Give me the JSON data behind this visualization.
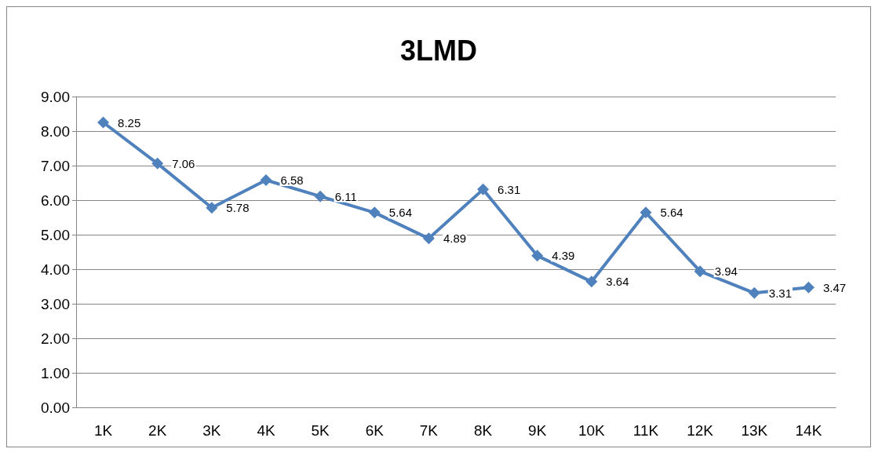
{
  "chart_data": {
    "type": "line",
    "title": "3LMD",
    "categories": [
      "1K",
      "2K",
      "3K",
      "4K",
      "5K",
      "6K",
      "7K",
      "8K",
      "9K",
      "10K",
      "11K",
      "12K",
      "13K",
      "14K"
    ],
    "values": [
      8.25,
      7.06,
      5.78,
      6.58,
      6.11,
      5.64,
      4.89,
      6.31,
      4.39,
      3.64,
      5.64,
      3.94,
      3.31,
      3.47
    ],
    "color": "#4f81bd",
    "ylim": [
      0,
      9
    ],
    "yticks": [
      {
        "value": 0,
        "label": "0.00"
      },
      {
        "value": 1,
        "label": "1.00"
      },
      {
        "value": 2,
        "label": "2.00"
      },
      {
        "value": 3,
        "label": "3.00"
      },
      {
        "value": 4,
        "label": "4.00"
      },
      {
        "value": 5,
        "label": "5.00"
      },
      {
        "value": 6,
        "label": "6.00"
      },
      {
        "value": 7,
        "label": "7.00"
      },
      {
        "value": 8,
        "label": "8.00"
      },
      {
        "value": 9,
        "label": "9.00"
      }
    ],
    "grid": "y",
    "marker": "diamond",
    "line_style": "solid",
    "data_labels": true
  }
}
